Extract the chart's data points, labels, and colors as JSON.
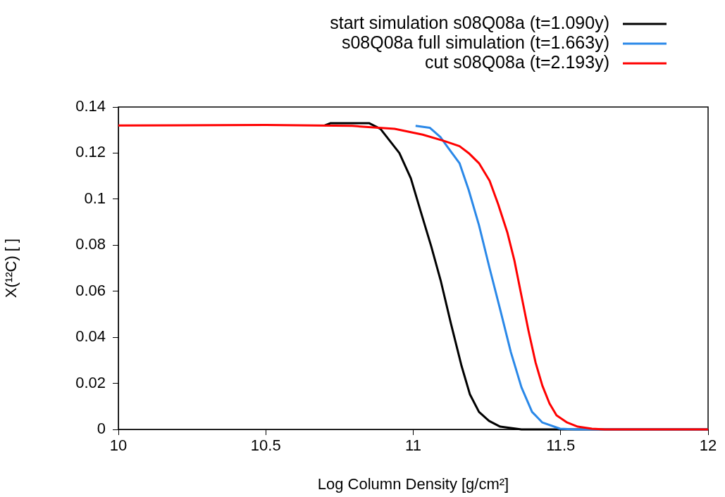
{
  "chart_data": {
    "type": "line",
    "xlabel": "Log Column Density [g/cm²]",
    "ylabel": "X(¹²C) [ ]",
    "xlim": [
      10,
      12
    ],
    "xticks": [
      10,
      10.5,
      11,
      11.5,
      12
    ],
    "ylim": [
      0,
      0.14
    ],
    "yticks": [
      0,
      0.02,
      0.04,
      0.06,
      0.08,
      0.1,
      0.12,
      0.14
    ],
    "grid": false,
    "legend": "top right",
    "marker": "none",
    "line_style": "solid",
    "series": [
      {
        "name": "start simulation s08Q08a (t=1.090y)",
        "color": "#000000",
        "x": [
          10.7,
          10.72,
          10.85,
          10.889,
          10.953,
          10.992,
          11.025,
          11.061,
          11.094,
          11.128,
          11.164,
          11.192,
          11.223,
          11.257,
          11.295,
          11.367,
          12
        ],
        "values": [
          0.132,
          0.133,
          0.133,
          0.1305,
          0.12,
          0.109,
          0.0948,
          0.0795,
          0.0642,
          0.0459,
          0.0275,
          0.0153,
          0.0076,
          0.0037,
          0.0012,
          0,
          0
        ]
      },
      {
        "name": "s08Q08a full simulation (t=1.663y)",
        "color": "#2a88e8",
        "x": [
          11.008,
          11.056,
          11.092,
          11.12,
          11.157,
          11.188,
          11.223,
          11.259,
          11.295,
          11.331,
          11.367,
          11.403,
          11.438,
          11.498,
          11.55,
          12
        ],
        "values": [
          0.1318,
          0.131,
          0.127,
          0.122,
          0.1156,
          0.104,
          0.0887,
          0.07,
          0.052,
          0.0336,
          0.0183,
          0.0076,
          0.003,
          0.0003,
          0,
          0
        ]
      },
      {
        "name": "cut s08Q08a (t=2.193y)",
        "color": "#ff0000",
        "x": [
          10,
          10.5,
          10.793,
          10.937,
          11.032,
          11.104,
          11.157,
          11.188,
          11.223,
          11.259,
          11.288,
          11.319,
          11.343,
          11.367,
          11.391,
          11.415,
          11.438,
          11.462,
          11.486,
          11.522,
          11.558,
          11.606,
          11.65,
          12
        ],
        "values": [
          0.132,
          0.1322,
          0.1318,
          0.1305,
          0.128,
          0.1253,
          0.123,
          0.12,
          0.1156,
          0.108,
          0.0978,
          0.0856,
          0.0734,
          0.0581,
          0.0428,
          0.029,
          0.019,
          0.0113,
          0.0061,
          0.003,
          0.0012,
          0.0003,
          0,
          0
        ]
      }
    ]
  }
}
